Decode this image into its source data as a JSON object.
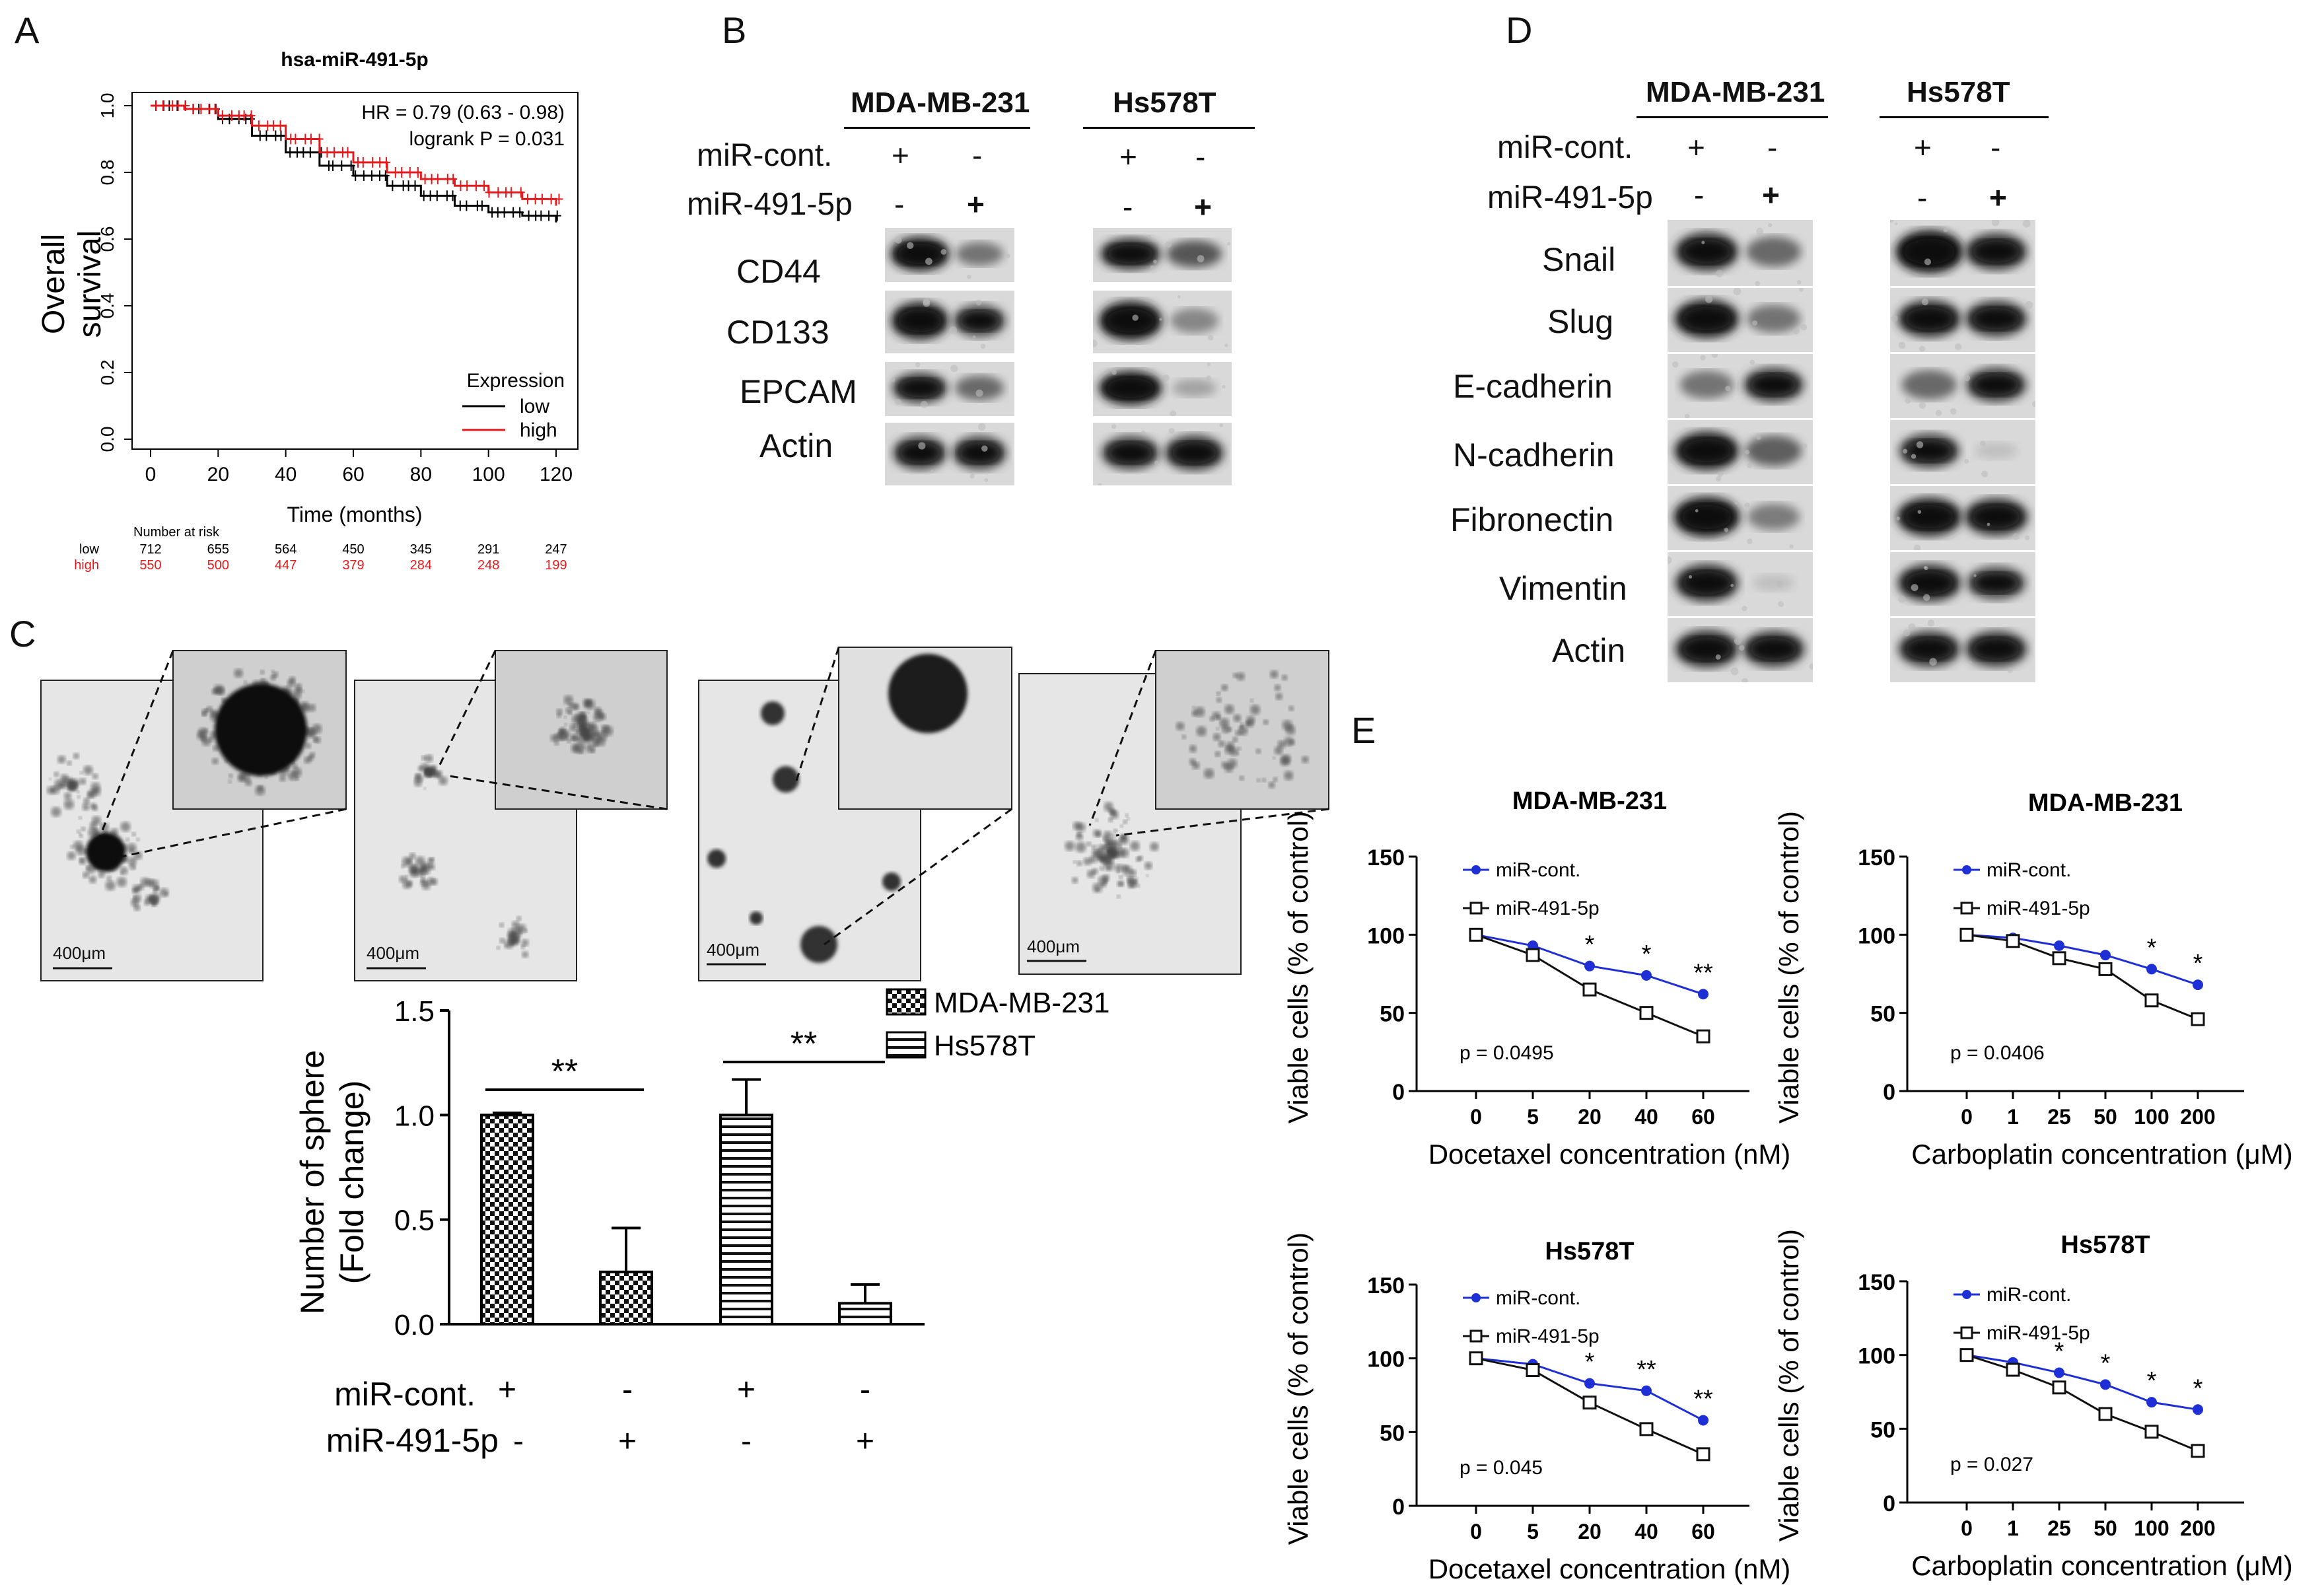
{
  "panelA": {
    "letter": "A",
    "chart_data": {
      "type": "line",
      "title": "hsa-miR-491-5p",
      "xlabel": "Time (months)",
      "ylabel": "Overall survival",
      "xlim": [
        0,
        120
      ],
      "ylim": [
        0,
        1.0
      ],
      "xticks": [
        "0",
        "20",
        "40",
        "60",
        "80",
        "100",
        "120"
      ],
      "yticks": [
        "0.0",
        "0.2",
        "0.4",
        "0.6",
        "0.8",
        "1.0"
      ],
      "hr_text": "HR = 0.79 (0.63 - 0.98)",
      "logrank_text": "logrank P = 0.031",
      "legend_title": "Expression",
      "series": [
        {
          "name": "low",
          "color": "#000000",
          "x": [
            0,
            10,
            20,
            30,
            40,
            50,
            60,
            70,
            80,
            90,
            100,
            110,
            120
          ],
          "y": [
            1.0,
            0.99,
            0.96,
            0.91,
            0.86,
            0.82,
            0.79,
            0.76,
            0.73,
            0.7,
            0.68,
            0.67,
            0.65
          ]
        },
        {
          "name": "high",
          "color": "#e41a1c",
          "x": [
            0,
            10,
            20,
            30,
            40,
            50,
            60,
            70,
            80,
            90,
            100,
            110,
            120
          ],
          "y": [
            1.0,
            0.99,
            0.97,
            0.94,
            0.9,
            0.86,
            0.83,
            0.8,
            0.78,
            0.76,
            0.74,
            0.72,
            0.7
          ]
        }
      ],
      "risk_title": "Number at risk",
      "risk_rows": [
        {
          "name": "low",
          "color": "#000000",
          "values": [
            "712",
            "655",
            "564",
            "450",
            "345",
            "291",
            "247"
          ]
        },
        {
          "name": "high",
          "color": "#e41a1c",
          "values": [
            "550",
            "500",
            "447",
            "379",
            "284",
            "248",
            "199"
          ]
        }
      ]
    }
  },
  "panelB": {
    "letter": "B",
    "cell_lines": [
      "MDA-MB-231",
      "Hs578T"
    ],
    "row_labels": [
      "miR-cont.",
      "miR-491-5p"
    ],
    "signs_cont": [
      "+",
      "-",
      "+",
      "-"
    ],
    "signs_mir": [
      "-",
      "+",
      "-",
      "+"
    ],
    "proteins": [
      "CD44",
      "CD133",
      "EPCAM",
      "Actin"
    ]
  },
  "panelC": {
    "letter": "C",
    "scale_bar": [
      "400μm",
      "400μm",
      "400μm",
      "400μm"
    ],
    "chart_data": {
      "type": "bar",
      "ylabel": "Number of sphere (Fold change)",
      "ylim": [
        0,
        1.5
      ],
      "yticks": [
        "0.0",
        "0.5",
        "1.0",
        "1.5"
      ],
      "categories": [
        "MDA-MB-231 miR-cont.",
        "MDA-MB-231 miR-491-5p",
        "Hs578T miR-cont.",
        "Hs578T miR-491-5p"
      ],
      "values": [
        1.0,
        0.25,
        1.0,
        0.1
      ],
      "errors": [
        0.01,
        0.21,
        0.17,
        0.09
      ],
      "series": [
        {
          "name": "MDA-MB-231",
          "pattern": "checker"
        },
        {
          "name": "Hs578T",
          "pattern": "stripes"
        }
      ],
      "significance": [
        "**",
        "**"
      ],
      "row_labels": [
        "miR-cont.",
        "miR-491-5p"
      ],
      "signs_cont": [
        "+",
        "-",
        "+",
        "-"
      ],
      "signs_mir": [
        "-",
        "+",
        "-",
        "+"
      ]
    }
  },
  "panelD": {
    "letter": "D",
    "cell_lines": [
      "MDA-MB-231",
      "Hs578T"
    ],
    "row_labels": [
      "miR-cont.",
      "miR-491-5p"
    ],
    "signs_cont": [
      "+",
      "-",
      "+",
      "-"
    ],
    "signs_mir": [
      "-",
      "+",
      "-",
      "+"
    ],
    "proteins": [
      "Snail",
      "Slug",
      "E-cadherin",
      "N-cadherin",
      "Fibronectin",
      "Vimentin",
      "Actin"
    ]
  },
  "panelE": {
    "letter": "E",
    "chart_data": [
      {
        "type": "line",
        "title": "MDA-MB-231",
        "xlabel": "Docetaxel concentration (nM)",
        "ylabel": "Viable cells (% of control)",
        "categories": [
          "0",
          "5",
          "20",
          "40",
          "60"
        ],
        "ylim": [
          0,
          150
        ],
        "yticks": [
          "0",
          "50",
          "100",
          "150"
        ],
        "series": [
          {
            "name": "miR-cont.",
            "values": [
              100,
              93,
              80,
              74,
              62
            ]
          },
          {
            "name": "miR-491-5p",
            "values": [
              100,
              87,
              65,
              50,
              35
            ]
          }
        ],
        "stars": [
          "",
          "",
          "*",
          "*",
          "**"
        ],
        "p_text": "p = 0.0495"
      },
      {
        "type": "line",
        "title": "MDA-MB-231",
        "xlabel": "Carboplatin concentration (μM)",
        "ylabel": "Viable cells (% of control)",
        "categories": [
          "0",
          "1",
          "25",
          "50",
          "100",
          "200"
        ],
        "ylim": [
          0,
          150
        ],
        "yticks": [
          "0",
          "50",
          "100",
          "150"
        ],
        "series": [
          {
            "name": "miR-cont.",
            "values": [
              100,
              98,
              93,
              87,
              78,
              68
            ]
          },
          {
            "name": "miR-491-5p",
            "values": [
              100,
              96,
              85,
              78,
              58,
              46
            ]
          }
        ],
        "stars": [
          "",
          "",
          "",
          "",
          "*",
          "*"
        ],
        "p_text": "p = 0.0406"
      },
      {
        "type": "line",
        "title": "Hs578T",
        "xlabel": "Docetaxel concentration (nM)",
        "ylabel": "Viable cells (% of control)",
        "categories": [
          "0",
          "5",
          "20",
          "40",
          "60"
        ],
        "ylim": [
          0,
          150
        ],
        "yticks": [
          "0",
          "50",
          "100",
          "150"
        ],
        "series": [
          {
            "name": "miR-cont.",
            "values": [
              100,
              96,
              83,
              78,
              58
            ]
          },
          {
            "name": "miR-491-5p",
            "values": [
              100,
              92,
              70,
              52,
              35
            ]
          }
        ],
        "stars": [
          "",
          "",
          "*",
          "**",
          "**"
        ],
        "p_text": "p = 0.045"
      },
      {
        "type": "line",
        "title": "Hs578T",
        "xlabel": "Carboplatin concentration (μM)",
        "ylabel": "Viable cells (% of control)",
        "categories": [
          "0",
          "1",
          "25",
          "50",
          "100",
          "200"
        ],
        "ylim": [
          0,
          150
        ],
        "yticks": [
          "0",
          "50",
          "100",
          "150"
        ],
        "series": [
          {
            "name": "miR-cont.",
            "values": [
              100,
              95,
              88,
              80,
              68,
              63
            ]
          },
          {
            "name": "miR-491-5p",
            "values": [
              100,
              90,
              78,
              60,
              48,
              35
            ]
          }
        ],
        "stars": [
          "",
          "",
          "*",
          "*",
          "*",
          "*"
        ],
        "p_text": "p = 0.027"
      }
    ]
  }
}
